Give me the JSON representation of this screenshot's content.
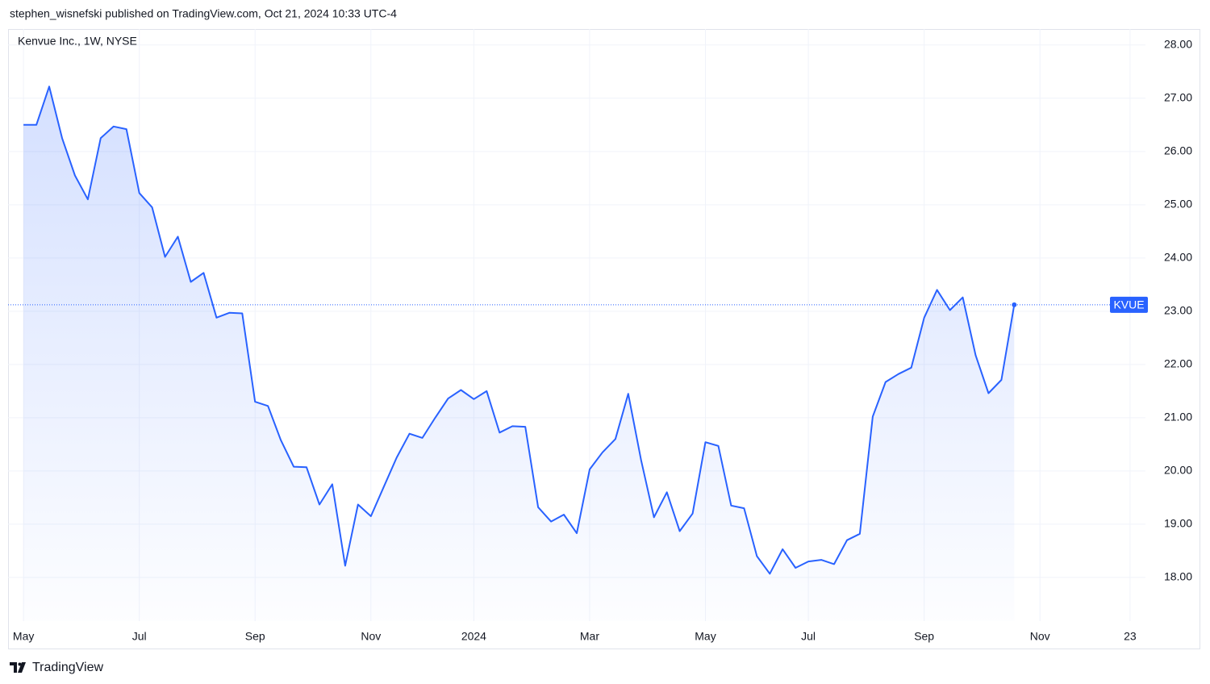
{
  "header": "stephen_wisnefski published on TradingView.com, Oct 21, 2024 10:33 UTC-4",
  "footer": "TradingView",
  "chart_data": {
    "type": "line",
    "title": "Kenvue Inc., 1W, NYSE",
    "series": [
      {
        "name": "KVUE",
        "color": "#2962ff",
        "values": [
          26.5,
          26.5,
          27.22,
          26.25,
          25.55,
          25.1,
          26.25,
          26.47,
          26.42,
          25.22,
          24.95,
          24.02,
          24.4,
          23.55,
          23.72,
          22.88,
          22.97,
          22.96,
          21.3,
          21.22,
          20.58,
          20.08,
          20.07,
          19.37,
          19.75,
          18.22,
          19.37,
          19.15,
          19.7,
          20.25,
          20.7,
          20.62,
          21.0,
          21.36,
          21.52,
          21.35,
          21.5,
          20.72,
          20.84,
          20.83,
          19.32,
          19.05,
          19.18,
          18.83,
          20.03,
          20.35,
          20.6,
          21.45,
          20.2,
          19.13,
          19.6,
          18.87,
          19.2,
          20.54,
          20.47,
          19.35,
          19.3,
          18.4,
          18.07,
          18.53,
          18.18,
          18.3,
          18.33,
          18.25,
          18.7,
          18.82,
          21.02,
          21.67,
          21.82,
          21.94,
          22.88,
          23.4,
          23.02,
          23.26,
          22.17,
          21.46,
          21.71,
          23.12
        ]
      }
    ],
    "xlim": [
      -1.2,
      87.2
    ],
    "xticks": [
      {
        "value": 0,
        "label": "May"
      },
      {
        "value": 9,
        "label": "Jul"
      },
      {
        "value": 18,
        "label": "Sep"
      },
      {
        "value": 27,
        "label": "Nov"
      },
      {
        "value": 35,
        "label": "2024"
      },
      {
        "value": 44,
        "label": "Mar"
      },
      {
        "value": 53,
        "label": "May"
      },
      {
        "value": 61,
        "label": "Jul"
      },
      {
        "value": 70,
        "label": "Sep"
      },
      {
        "value": 79,
        "label": "Nov"
      },
      {
        "value": 86,
        "label": "23"
      }
    ],
    "ylim": [
      16.65,
      28.3
    ],
    "yticks": [
      {
        "value": 18,
        "label": "18.00"
      },
      {
        "value": 19,
        "label": "19.00"
      },
      {
        "value": 20,
        "label": "20.00"
      },
      {
        "value": 21,
        "label": "21.00"
      },
      {
        "value": 22,
        "label": "22.00"
      },
      {
        "value": 23,
        "label": "23.00"
      },
      {
        "value": 24,
        "label": "24.00"
      },
      {
        "value": 25,
        "label": "25.00"
      },
      {
        "value": 26,
        "label": "26.00"
      },
      {
        "value": 27,
        "label": "27.00"
      },
      {
        "value": 28,
        "label": "28.00"
      }
    ],
    "grid": true
  }
}
